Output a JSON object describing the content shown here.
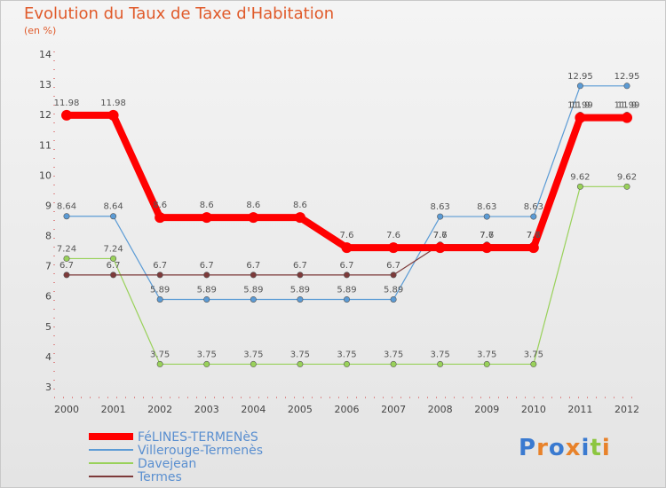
{
  "title": "Evolution du Taux de Taxe d'Habitation",
  "subtitle": "(en %)",
  "logo_text": "Proxiti",
  "chart_data": {
    "type": "line",
    "x": [
      "2000",
      "2001",
      "2002",
      "2003",
      "2004",
      "2005",
      "2006",
      "2007",
      "2008",
      "2009",
      "2010",
      "2011",
      "2012"
    ],
    "ylim": [
      3,
      14
    ],
    "yticks": [
      3,
      4,
      5,
      6,
      7,
      8,
      9,
      10,
      11,
      12,
      13,
      14
    ],
    "grid": false,
    "legend_position": "bottom-left",
    "series": [
      {
        "name": "FéLINES-TERMENèS",
        "color": "#ff0000",
        "values": [
          11.98,
          11.98,
          8.6,
          8.6,
          8.6,
          8.6,
          7.6,
          7.6,
          7.6,
          7.6,
          7.6,
          11.9,
          11.9
        ],
        "labels": [
          "11.98",
          "11.98",
          "8.6",
          "8.6",
          "8.6",
          "8.6",
          "7.6",
          "7.6",
          "7.6",
          "7.6",
          "7.6",
          "11.9",
          "11.9"
        ]
      },
      {
        "name": "Villerouge-Termenès",
        "color": "#5b9bd5",
        "values": [
          8.64,
          8.64,
          5.89,
          5.89,
          5.89,
          5.89,
          5.89,
          5.89,
          8.63,
          8.63,
          8.63,
          12.95,
          12.95
        ],
        "labels": [
          "8.64",
          "8.64",
          "5.89",
          "5.89",
          "5.89",
          "5.89",
          "5.89",
          "5.89",
          "8.63",
          "8.63",
          "8.63",
          "12.95",
          "12.95"
        ]
      },
      {
        "name": "Davejean",
        "color": "#99d15a",
        "values": [
          7.24,
          7.24,
          3.75,
          3.75,
          3.75,
          3.75,
          3.75,
          3.75,
          3.75,
          3.75,
          3.75,
          9.62,
          9.62
        ],
        "labels": [
          "7.24",
          "7.24",
          "3.75",
          "3.75",
          "3.75",
          "3.75",
          "3.75",
          "3.75",
          "3.75",
          "3.75",
          "3.75",
          "9.62",
          "9.62"
        ]
      },
      {
        "name": "Termes",
        "color": "#7d3a3a",
        "values": [
          6.7,
          6.7,
          6.7,
          6.7,
          6.7,
          6.7,
          6.7,
          6.7,
          7.7,
          7.7,
          7.7,
          11.99,
          11.99
        ],
        "labels": [
          "6.7",
          "6.7",
          "6.7",
          "6.7",
          "6.7",
          "6.7",
          "6.7",
          "6.7",
          "7.7",
          "7.7",
          "7.7",
          "11.99",
          "11.99"
        ]
      }
    ]
  }
}
